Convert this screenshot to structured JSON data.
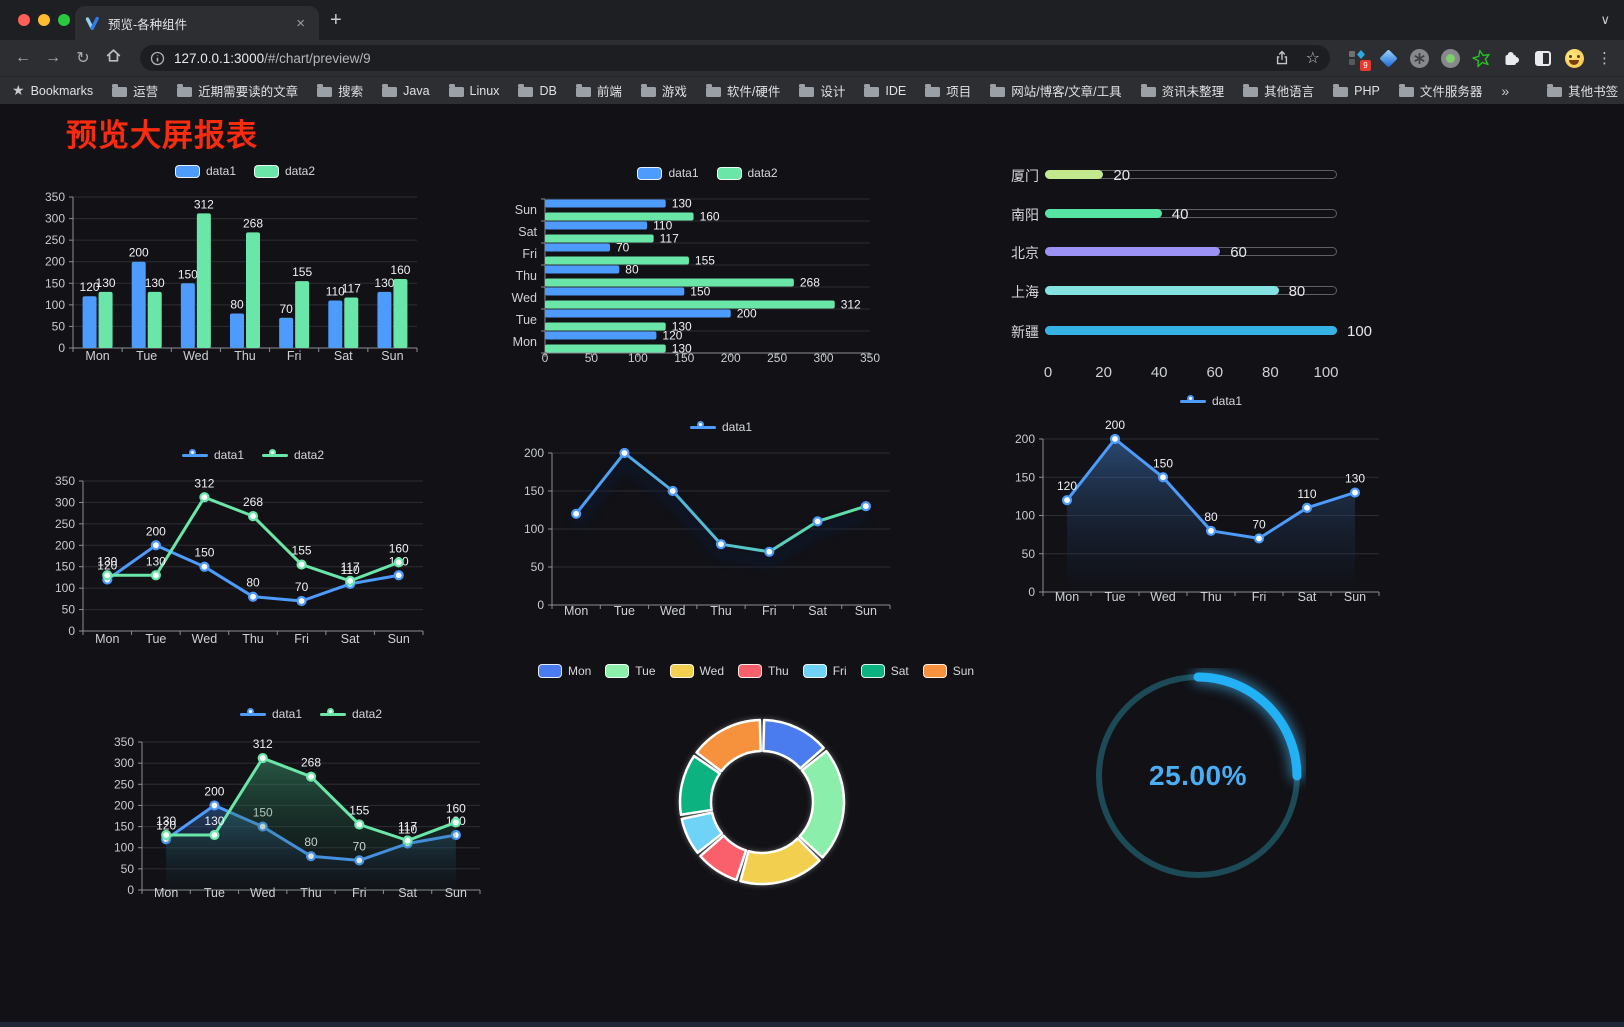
{
  "browser": {
    "tab_title": "预览-各种组件",
    "tab_close": "×",
    "new_tab": "+",
    "tab_search": "∨",
    "url_host": "127.0.0.1:3000",
    "url_path": "/#/chart/preview/9",
    "back": "←",
    "forward": "→",
    "reload": "↻",
    "star": "☆",
    "kebab": "⋮",
    "extension_badge": "9",
    "bookmarks_bar": {
      "first_label": "Bookmarks",
      "folders": [
        "运营",
        "近期需要读的文章",
        "搜索",
        "Java",
        "Linux",
        "DB",
        "前端",
        "游戏",
        "软件/硬件",
        "设计",
        "IDE",
        "项目",
        "网站/博客/文章/工具",
        "资讯未整理",
        "其他语言",
        "PHP",
        "文件服务器"
      ],
      "overflow": "»",
      "other_bookmarks": "其他书签"
    }
  },
  "page": {
    "title": "预览大屏报表",
    "title_color": "#fb2b10"
  },
  "chart_data": [
    {
      "id": "bar-vertical",
      "type": "bar",
      "categories": [
        "Mon",
        "Tue",
        "Wed",
        "Thu",
        "Fri",
        "Sat",
        "Sun"
      ],
      "series": [
        {
          "name": "data1",
          "color": "#4c9bfd",
          "values": [
            120,
            200,
            150,
            80,
            70,
            110,
            130
          ]
        },
        {
          "name": "data2",
          "color": "#6be6a9",
          "values": [
            130,
            130,
            312,
            268,
            155,
            117,
            160
          ]
        }
      ],
      "ylim": [
        0,
        350
      ],
      "ytick": 50,
      "labels": true,
      "legend_position": "top",
      "grid": true
    },
    {
      "id": "bar-horizontal",
      "type": "hbar",
      "categories": [
        "Mon",
        "Tue",
        "Wed",
        "Thu",
        "Fri",
        "Sat",
        "Sun"
      ],
      "display_order_top_to_bottom": [
        "Sun",
        "Sat",
        "Fri",
        "Thu",
        "Wed",
        "Tue",
        "Mon"
      ],
      "series": [
        {
          "name": "data1",
          "color": "#4c9bfd",
          "values": [
            120,
            200,
            150,
            80,
            70,
            110,
            130
          ]
        },
        {
          "name": "data2",
          "color": "#6be6a9",
          "values": [
            130,
            130,
            312,
            268,
            155,
            117,
            160
          ]
        }
      ],
      "xlim": [
        0,
        350
      ],
      "xtick": 50,
      "labels": true,
      "legend_position": "top",
      "grid": true
    },
    {
      "id": "progress-bars",
      "type": "progress",
      "items": [
        {
          "label": "厦门",
          "value": 20,
          "color": "#c3e88d"
        },
        {
          "label": "南阳",
          "value": 40,
          "color": "#57e5a4"
        },
        {
          "label": "北京",
          "value": 60,
          "color": "#9c92f5"
        },
        {
          "label": "上海",
          "value": 80,
          "color": "#84e3e0"
        },
        {
          "label": "新疆",
          "value": 100,
          "color": "#35b3e5"
        }
      ],
      "xticks": [
        0,
        20,
        40,
        60,
        80,
        100
      ],
      "xlim": [
        0,
        100
      ]
    },
    {
      "id": "line-dual",
      "type": "line",
      "categories": [
        "Mon",
        "Tue",
        "Wed",
        "Thu",
        "Fri",
        "Sat",
        "Sun"
      ],
      "series": [
        {
          "name": "data1",
          "color": "#4c9bfd",
          "values": [
            120,
            200,
            150,
            80,
            70,
            110,
            130
          ]
        },
        {
          "name": "data2",
          "color": "#6be6a9",
          "values": [
            130,
            130,
            312,
            268,
            155,
            117,
            160
          ]
        }
      ],
      "ylim": [
        0,
        350
      ],
      "ytick": 50,
      "labels": true,
      "legend_position": "top",
      "grid": true
    },
    {
      "id": "line-gradient",
      "type": "line",
      "categories": [
        "Mon",
        "Tue",
        "Wed",
        "Thu",
        "Fri",
        "Sat",
        "Sun"
      ],
      "series": [
        {
          "name": "data1",
          "color": "#4c9bfd",
          "color_end": "#5fe3a1",
          "values": [
            120,
            200,
            150,
            80,
            70,
            110,
            130
          ],
          "shadow": true
        }
      ],
      "ylim": [
        0,
        200
      ],
      "ytick": 50,
      "labels": false,
      "legend_position": "top",
      "grid": true
    },
    {
      "id": "area-single",
      "type": "line",
      "categories": [
        "Mon",
        "Tue",
        "Wed",
        "Thu",
        "Fri",
        "Sat",
        "Sun"
      ],
      "series": [
        {
          "name": "data1",
          "color": "#4c9bfd",
          "values": [
            120,
            200,
            150,
            80,
            70,
            110,
            130
          ],
          "area": [
            "rgba(62,118,188,0.55)",
            "rgba(25,45,75,0.03)"
          ]
        }
      ],
      "ylim": [
        0,
        200
      ],
      "ytick": 50,
      "labels": true,
      "legend_position": "top",
      "grid": true
    },
    {
      "id": "line-area-dual",
      "type": "line",
      "categories": [
        "Mon",
        "Tue",
        "Wed",
        "Thu",
        "Fri",
        "Sat",
        "Sun"
      ],
      "series": [
        {
          "name": "data1",
          "color": "#4c9bfd",
          "values": [
            120,
            200,
            150,
            80,
            70,
            110,
            130
          ],
          "area": [
            "rgba(56,108,185,0.50)",
            "rgba(20,40,70,0.03)"
          ]
        },
        {
          "name": "data2",
          "color": "#6be6a9",
          "values": [
            130,
            130,
            312,
            268,
            155,
            117,
            160
          ],
          "area": [
            "rgba(58,148,108,0.55)",
            "rgba(20,60,40,0.03)"
          ]
        }
      ],
      "ylim": [
        0,
        350
      ],
      "ytick": 50,
      "labels": true,
      "legend_position": "top",
      "grid": true
    },
    {
      "id": "pie-donut",
      "type": "pie",
      "labels": [
        "Mon",
        "Tue",
        "Wed",
        "Thu",
        "Fri",
        "Sat",
        "Sun"
      ],
      "values": [
        120,
        200,
        150,
        80,
        70,
        110,
        130
      ],
      "colors": [
        "#4a7cf0",
        "#8ceeab",
        "#f2cf4e",
        "#f9606c",
        "#6fd3f8",
        "#0cb381",
        "#f6923d"
      ],
      "legend_position": "top",
      "donut": true
    },
    {
      "id": "gauge",
      "type": "gauge",
      "percent": 25,
      "display": "25.00%",
      "arc_color": "#23b1f5",
      "track_color": "#1d4a57",
      "text_color": "#4aaef4"
    }
  ]
}
